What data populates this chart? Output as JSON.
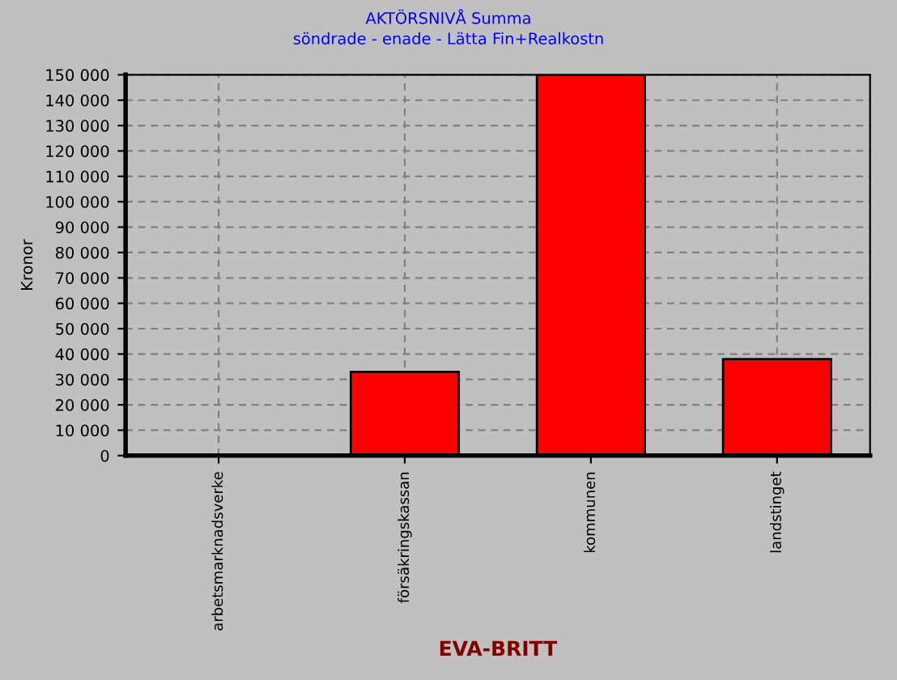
{
  "chart_data": {
    "type": "bar",
    "title": "AKTÖRSNIVÅ Summa",
    "subtitle": "söndrade - enade - Lätta Fin+Realkostn",
    "xlabel": "EVA-BRITT",
    "ylabel": "Kronor",
    "categories": [
      "arbetsmarknadsverke",
      "försäkringskassan",
      "kommunen",
      "landstinget"
    ],
    "values": [
      0,
      33000,
      150000,
      38000
    ],
    "color": "#ff0000",
    "ylim": [
      0,
      150000
    ],
    "yticks": [
      {
        "value": 0,
        "label": "0"
      },
      {
        "value": 10000,
        "label": "10 000"
      },
      {
        "value": 20000,
        "label": "20 000"
      },
      {
        "value": 30000,
        "label": "30 000"
      },
      {
        "value": 40000,
        "label": "40 000"
      },
      {
        "value": 50000,
        "label": "50 000"
      },
      {
        "value": 60000,
        "label": "60 000"
      },
      {
        "value": 70000,
        "label": "70 000"
      },
      {
        "value": 80000,
        "label": "80 000"
      },
      {
        "value": 90000,
        "label": "90 000"
      },
      {
        "value": 100000,
        "label": "100 000"
      },
      {
        "value": 110000,
        "label": "110 000"
      },
      {
        "value": 120000,
        "label": "120 000"
      },
      {
        "value": 130000,
        "label": "130 000"
      },
      {
        "value": 140000,
        "label": "140 000"
      },
      {
        "value": 150000,
        "label": "150 000"
      }
    ],
    "grid": true
  }
}
